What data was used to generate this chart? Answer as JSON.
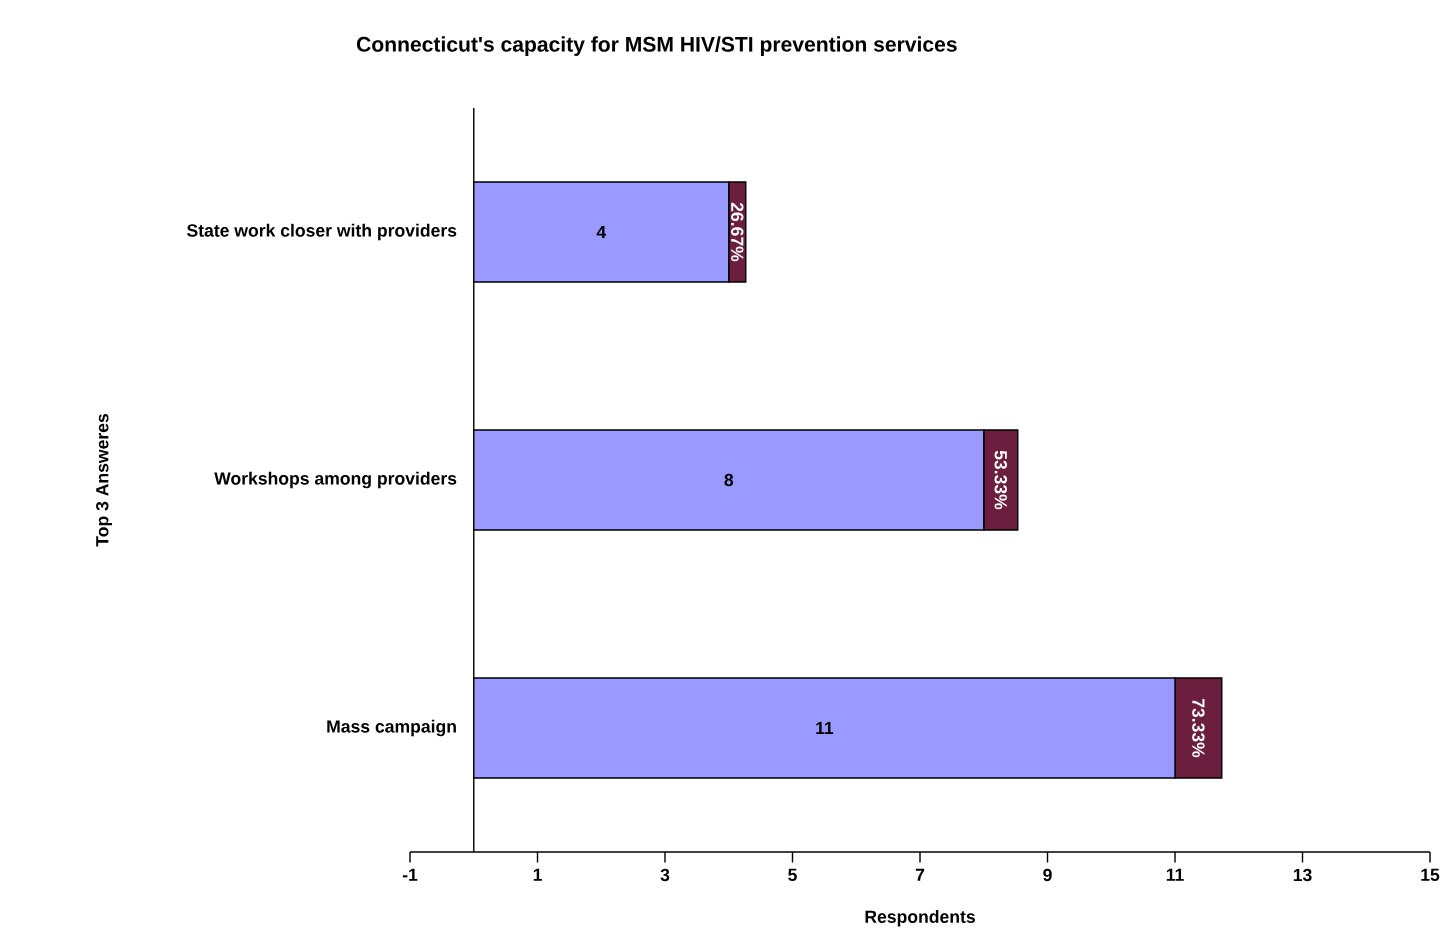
{
  "chart_data": {
    "type": "bar",
    "orientation": "horizontal",
    "stacked": true,
    "title": "Connecticut's capacity for MSM HIV/STI prevention services",
    "xlabel": "Respondents",
    "ylabel": "Top 3 Answeres",
    "categories": [
      "State work closer with providers",
      "Workshops among providers",
      "Mass campaign"
    ],
    "series": [
      {
        "color": "#9999ff",
        "values": [
          4,
          8,
          11
        ],
        "value_labels": [
          "4",
          "8",
          "11"
        ]
      },
      {
        "color": "#6b1e3e",
        "values": [
          0.2667,
          0.5333,
          0.7333
        ],
        "value_labels": [
          "26.67%",
          "53.33%",
          "73.33%"
        ]
      }
    ],
    "xlim": [
      -1,
      15
    ],
    "xticks": [
      -1,
      1,
      3,
      5,
      7,
      9,
      11,
      13,
      15
    ],
    "grid": false
  }
}
